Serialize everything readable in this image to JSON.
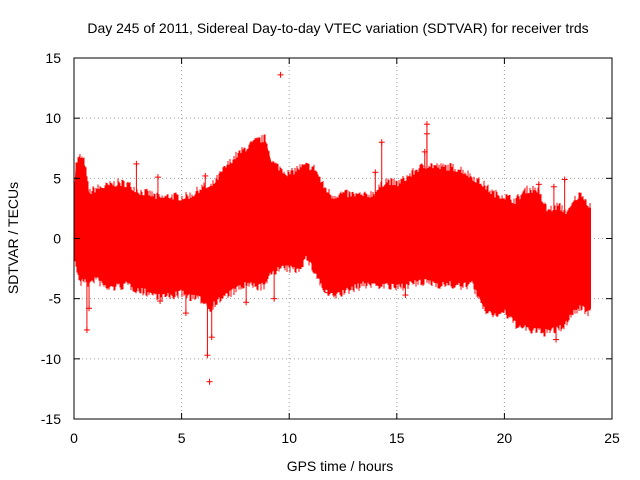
{
  "chart_data": {
    "type": "scatter",
    "title": "Day 245 of 2011, Sidereal Day-to-day VTEC variation (SDTVAR) for receiver trds",
    "xlabel": "GPS time / hours",
    "ylabel": "SDTVAR / TECUs",
    "xlim": [
      0,
      25
    ],
    "ylim": [
      -15,
      15
    ],
    "x_ticks": [
      0,
      5,
      10,
      15,
      20,
      25
    ],
    "x_tick_labels": [
      "0",
      "5",
      "10",
      "15",
      "20",
      "25"
    ],
    "y_ticks": [
      -15,
      -10,
      -5,
      0,
      5,
      10,
      15
    ],
    "y_tick_labels": [
      "-15",
      "-10",
      "-5",
      "0",
      "5",
      "10",
      "15"
    ],
    "grid": true,
    "marker": "+",
    "series": [
      {
        "name": "SDTVAR",
        "color": "#ff0000",
        "x_range": [
          0,
          24
        ],
        "envelope": {
          "x": [
            0.0,
            0.1,
            0.3,
            0.5,
            0.7,
            1.0,
            1.5,
            2.0,
            2.5,
            3.0,
            3.5,
            4.0,
            4.5,
            5.0,
            5.5,
            6.0,
            6.3,
            6.6,
            7.0,
            7.5,
            8.0,
            8.5,
            8.9,
            9.2,
            9.6,
            10.0,
            10.4,
            10.8,
            11.2,
            11.6,
            12.0,
            12.5,
            13.0,
            13.5,
            14.0,
            14.5,
            15.0,
            15.5,
            16.0,
            16.5,
            17.0,
            17.5,
            18.0,
            18.5,
            19.0,
            19.5,
            20.0,
            20.5,
            21.0,
            21.5,
            22.0,
            22.5,
            22.8,
            23.0,
            23.3,
            23.6,
            23.9,
            24.0
          ],
          "upper": [
            3.2,
            6.0,
            6.5,
            6.0,
            3.5,
            3.8,
            4.0,
            4.3,
            4.2,
            3.6,
            3.4,
            3.0,
            3.2,
            3.1,
            3.3,
            4.0,
            3.8,
            4.5,
            5.5,
            6.5,
            7.2,
            7.8,
            8.0,
            6.0,
            5.5,
            5.0,
            5.5,
            5.7,
            5.5,
            4.0,
            3.2,
            3.4,
            3.3,
            3.2,
            3.5,
            4.5,
            4.2,
            4.8,
            5.5,
            5.8,
            5.6,
            5.6,
            5.4,
            4.8,
            4.2,
            3.4,
            3.2,
            2.8,
            3.7,
            3.8,
            2.0,
            2.4,
            2.0,
            1.9,
            3.0,
            3.4,
            2.5,
            2.5
          ],
          "lower": [
            -1.5,
            -2.0,
            -3.5,
            -3.0,
            -3.5,
            -3.0,
            -3.8,
            -3.7,
            -3.5,
            -4.0,
            -4.2,
            -4.5,
            -4.5,
            -4.2,
            -4.6,
            -4.8,
            -5.5,
            -5.0,
            -4.5,
            -4.0,
            -3.5,
            -3.7,
            -3.6,
            -2.4,
            -2.2,
            -2.2,
            -2.3,
            -1.3,
            -2.5,
            -4.0,
            -4.5,
            -4.2,
            -3.8,
            -3.5,
            -3.5,
            -3.6,
            -3.8,
            -3.5,
            -3.4,
            -3.3,
            -3.5,
            -3.5,
            -3.7,
            -3.4,
            -5.5,
            -6.0,
            -5.8,
            -6.8,
            -7.2,
            -7.4,
            -7.5,
            -7.2,
            -7.0,
            -6.2,
            -5.7,
            -5.4,
            -5.8,
            -5.8
          ]
        },
        "outliers": [
          {
            "x": 9.6,
            "y": 13.6
          },
          {
            "x": 14.3,
            "y": 8.0
          },
          {
            "x": 16.4,
            "y": 9.5
          },
          {
            "x": 16.4,
            "y": 8.7
          },
          {
            "x": 16.3,
            "y": 7.2
          },
          {
            "x": 22.8,
            "y": 4.9
          },
          {
            "x": 2.9,
            "y": 6.2
          },
          {
            "x": 3.9,
            "y": 5.1
          },
          {
            "x": 6.1,
            "y": 5.2
          },
          {
            "x": 8.7,
            "y": 7.5
          },
          {
            "x": 14.0,
            "y": 5.5
          },
          {
            "x": 21.6,
            "y": 4.5
          },
          {
            "x": 22.3,
            "y": 4.3
          },
          {
            "x": 0.6,
            "y": -7.6
          },
          {
            "x": 0.7,
            "y": -5.8
          },
          {
            "x": 6.3,
            "y": -11.9
          },
          {
            "x": 6.2,
            "y": -9.7
          },
          {
            "x": 6.4,
            "y": -8.2
          },
          {
            "x": 22.4,
            "y": -8.4
          },
          {
            "x": 4.0,
            "y": -5.2
          },
          {
            "x": 5.2,
            "y": -6.2
          },
          {
            "x": 8.0,
            "y": -5.3
          },
          {
            "x": 9.3,
            "y": -5.0
          },
          {
            "x": 11.8,
            "y": -4.5
          },
          {
            "x": 15.4,
            "y": -4.7
          }
        ]
      }
    ]
  }
}
